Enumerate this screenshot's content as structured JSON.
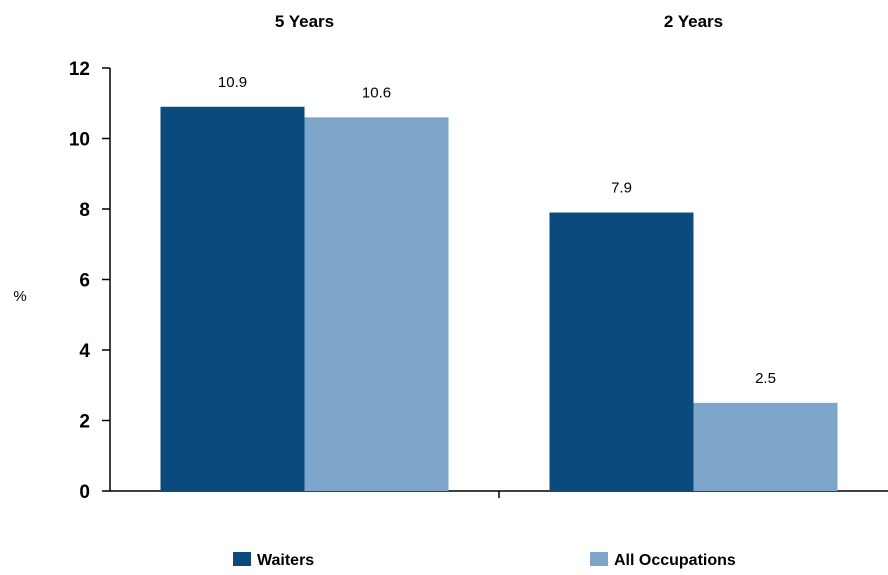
{
  "chart_data": {
    "type": "bar",
    "categories": [
      "5 Years",
      "2 Years"
    ],
    "series": [
      {
        "name": "Waiters",
        "values": [
          10.9,
          7.9
        ],
        "color": "#0b4a7c"
      },
      {
        "name": "All Occupations",
        "values": [
          10.6,
          2.5
        ],
        "color": "#7ea6cb"
      }
    ],
    "ylabel": "%",
    "ylim": [
      0,
      12
    ],
    "yticks": [
      0,
      2,
      4,
      6,
      8,
      10,
      12
    ],
    "category_labels_position": "top",
    "legend_position": "bottom",
    "grid": false
  }
}
